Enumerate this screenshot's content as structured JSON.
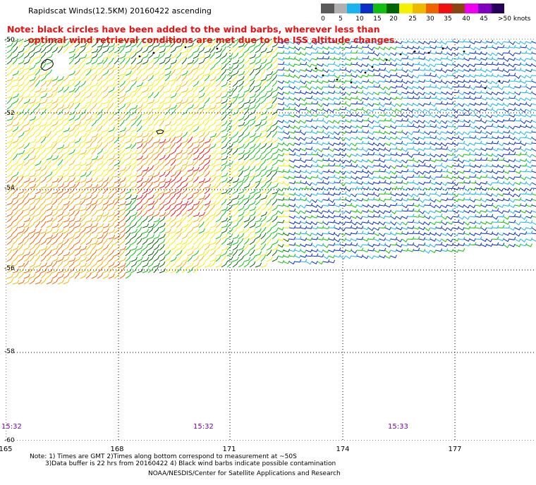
{
  "header": {
    "title": "Rapidscat Winds(12.5KM) 20160422 ascending"
  },
  "legend": {
    "colors": [
      "#5a5a5a",
      "#b0b0b0",
      "#19b4f0",
      "#0a2ec8",
      "#10c010",
      "#006400",
      "#f5f000",
      "#f0b800",
      "#f06400",
      "#f01010",
      "#8b4513",
      "#f000f0",
      "#8000c0",
      "#28005a"
    ],
    "ticks": [
      "0",
      "5",
      "10",
      "15",
      "20",
      "25",
      "30",
      "35",
      "40",
      "45",
      ">50 knots"
    ]
  },
  "note": {
    "line1": "Note: black circles have been added to the wind barbs, wherever less than",
    "line2": "optimal wind retrieval conditions are met due to the ISS altitude changes."
  },
  "axes": {
    "lat_labels": [
      "-50",
      "-52",
      "-54",
      "-56",
      "-58",
      "-60"
    ],
    "lon_labels": [
      "165",
      "168",
      "171",
      "174",
      "177"
    ]
  },
  "times": [
    "15:32",
    "15:32",
    "15:33"
  ],
  "footer": {
    "line1": "Note: 1) Times are GMT 2)Times along bottom correspond to measurement at ~50S",
    "line2": "3)Data buffer is 22 hrs from 20160422 4) Black wind barbs indicate possible contamination",
    "line3": "NOAA/NESDIS/Center for Satellite Applications and Research"
  },
  "colors": {
    "note": "#ee1111",
    "time": "#7a00a0"
  }
}
